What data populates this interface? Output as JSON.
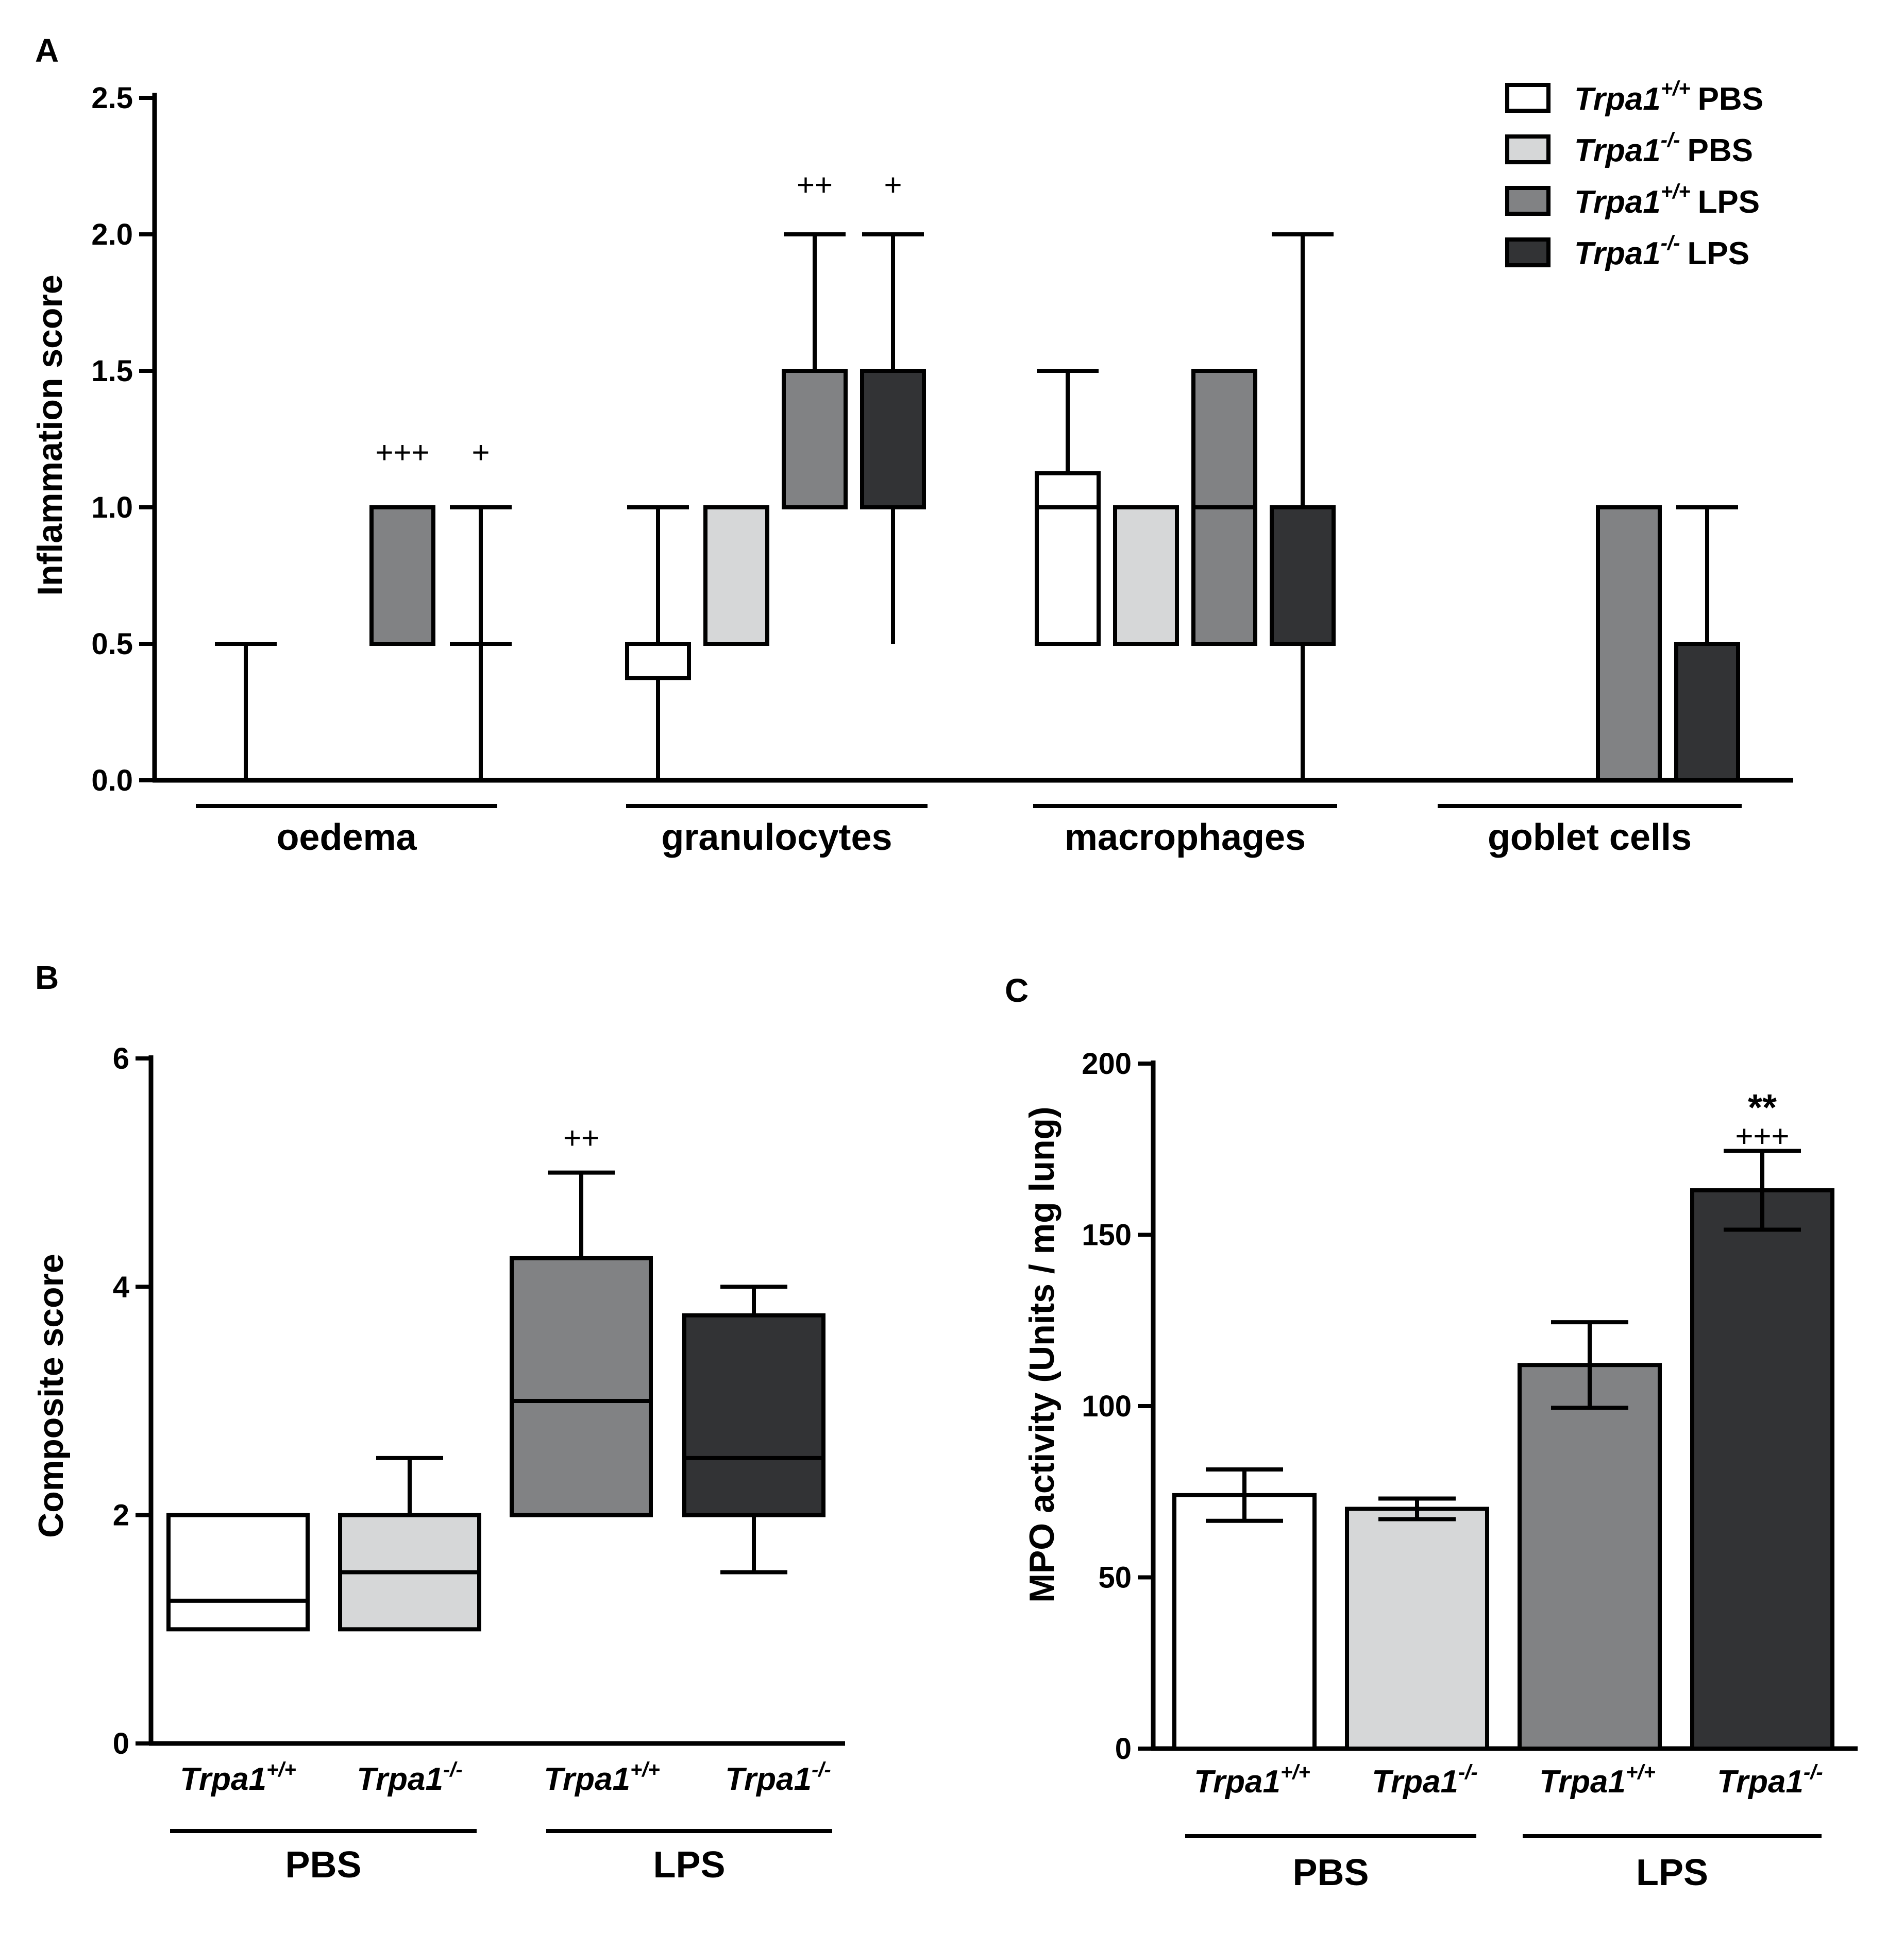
{
  "panels": {
    "A": {
      "letter": "A"
    },
    "B": {
      "letter": "B"
    },
    "C": {
      "letter": "C"
    }
  },
  "groups": [
    {
      "key": "wt_pbs",
      "genotype": "Trpa1",
      "sup": "+/+",
      "treatment": "PBS",
      "fill": "#ffffff"
    },
    {
      "key": "ko_pbs",
      "genotype": "Trpa1",
      "sup": "-/-",
      "treatment": "PBS",
      "fill": "#d6d7d8"
    },
    {
      "key": "wt_lps",
      "genotype": "Trpa1",
      "sup": "+/+",
      "treatment": "LPS",
      "fill": "#818284"
    },
    {
      "key": "ko_lps",
      "genotype": "Trpa1",
      "sup": "-/-",
      "treatment": "LPS",
      "fill": "#323335"
    }
  ],
  "chart_data": [
    {
      "panel": "A",
      "type": "box",
      "ylabel": "Inflammation score",
      "ylim": [
        0,
        2.5
      ],
      "yticks": [
        "0.0",
        "0.5",
        "1.0",
        "1.5",
        "2.0",
        "2.5"
      ],
      "ytick_values": [
        0,
        0.5,
        1.0,
        1.5,
        2.0,
        2.5
      ],
      "legend_position": "top-right",
      "categories": [
        "oedema",
        "granulocytes",
        "macrophages",
        "goblet cells"
      ],
      "series": [
        {
          "group": "wt_pbs",
          "boxes": [
            {
              "min": 0,
              "q1": 0,
              "median": 0,
              "q3": 0,
              "max": 0.5
            },
            {
              "min": 0,
              "q1": 0.375,
              "median": 0.5,
              "q3": 0.5,
              "max": 1.0
            },
            {
              "min": 0.5,
              "q1": 0.5,
              "median": 1.0,
              "q3": 1.125,
              "max": 1.5
            },
            {
              "min": 0,
              "q1": 0,
              "median": 0,
              "q3": 0,
              "max": 0
            }
          ]
        },
        {
          "group": "ko_pbs",
          "boxes": [
            {
              "min": 0,
              "q1": 0,
              "median": 0,
              "q3": 0,
              "max": 0
            },
            {
              "min": 0.5,
              "q1": 0.5,
              "median": 1.0,
              "q3": 1.0,
              "max": 1.0
            },
            {
              "min": 0.5,
              "q1": 0.5,
              "median": 1.0,
              "q3": 1.0,
              "max": 1.0
            },
            {
              "min": 0,
              "q1": 0,
              "median": 0,
              "q3": 0,
              "max": 0
            }
          ]
        },
        {
          "group": "wt_lps",
          "boxes": [
            {
              "min": 0.5,
              "q1": 0.5,
              "median": 1.0,
              "q3": 1.0,
              "max": 1.0
            },
            {
              "min": 1.0,
              "q1": 1.0,
              "median": 1.5,
              "q3": 1.5,
              "max": 2.0
            },
            {
              "min": 0.5,
              "q1": 0.5,
              "median": 1.0,
              "q3": 1.5,
              "max": 1.5
            },
            {
              "min": 0,
              "q1": 0,
              "median": 1.0,
              "q3": 1.0,
              "max": 1.0
            }
          ]
        },
        {
          "group": "ko_lps",
          "boxes": [
            {
              "min": 0,
              "q1": 0.5,
              "median": 0.5,
              "q3": 0.5,
              "max": 1.0
            },
            {
              "min": 0.5,
              "q1": 1.0,
              "median": 1.5,
              "q3": 1.5,
              "max": 2.0
            },
            {
              "min": 0,
              "q1": 0.5,
              "median": 1.0,
              "q3": 1.0,
              "max": 2.0
            },
            {
              "min": 0,
              "q1": 0,
              "median": 0.5,
              "q3": 0.5,
              "max": 1.0
            }
          ]
        }
      ],
      "annotations": [
        {
          "text": "+++",
          "category": 0,
          "group": "wt_lps",
          "y": 1.2
        },
        {
          "text": "+",
          "category": 0,
          "group": "ko_lps",
          "y": 1.2
        },
        {
          "text": "++",
          "category": 1,
          "group": "wt_lps",
          "y": 2.18
        },
        {
          "text": "+",
          "category": 1,
          "group": "ko_lps",
          "y": 2.18
        }
      ]
    },
    {
      "panel": "B",
      "type": "box",
      "ylabel": "Composite score",
      "ylim": [
        0,
        6
      ],
      "yticks": [
        "0",
        "2",
        "4",
        "6"
      ],
      "ytick_values": [
        0,
        2,
        4,
        6
      ],
      "treatments": [
        "PBS",
        "LPS"
      ],
      "boxes": [
        {
          "group": "wt_pbs",
          "min": 1.0,
          "q1": 1.0,
          "median": 1.25,
          "q3": 2.0,
          "max": 2.0
        },
        {
          "group": "ko_pbs",
          "min": 1.0,
          "q1": 1.0,
          "median": 1.5,
          "q3": 2.0,
          "max": 2.5
        },
        {
          "group": "wt_lps",
          "min": 2.0,
          "q1": 2.0,
          "median": 3.0,
          "q3": 4.25,
          "max": 5.0
        },
        {
          "group": "ko_lps",
          "min": 1.5,
          "q1": 2.0,
          "median": 2.5,
          "q3": 3.75,
          "max": 4.0
        }
      ],
      "annotations": [
        {
          "text": "++",
          "group": "wt_lps",
          "y": 5.3
        }
      ]
    },
    {
      "panel": "C",
      "type": "bar",
      "ylabel": "MPO activity (Units / mg lung)",
      "ylim": [
        0,
        200
      ],
      "yticks": [
        "0",
        "50",
        "100",
        "150",
        "200"
      ],
      "ytick_values": [
        0,
        50,
        100,
        150,
        200
      ],
      "treatments": [
        "PBS",
        "LPS"
      ],
      "bars": [
        {
          "group": "wt_pbs",
          "value": 74,
          "err": 7.5
        },
        {
          "group": "ko_pbs",
          "value": 70,
          "err": 3
        },
        {
          "group": "wt_lps",
          "value": 112,
          "err": 12.5
        },
        {
          "group": "ko_lps",
          "value": 163,
          "err": 11.5
        }
      ],
      "annotations": [
        {
          "text": "**",
          "group": "ko_lps",
          "y": 188,
          "bold": true
        },
        {
          "text": "+++",
          "group": "ko_lps",
          "y": 179
        }
      ]
    }
  ]
}
